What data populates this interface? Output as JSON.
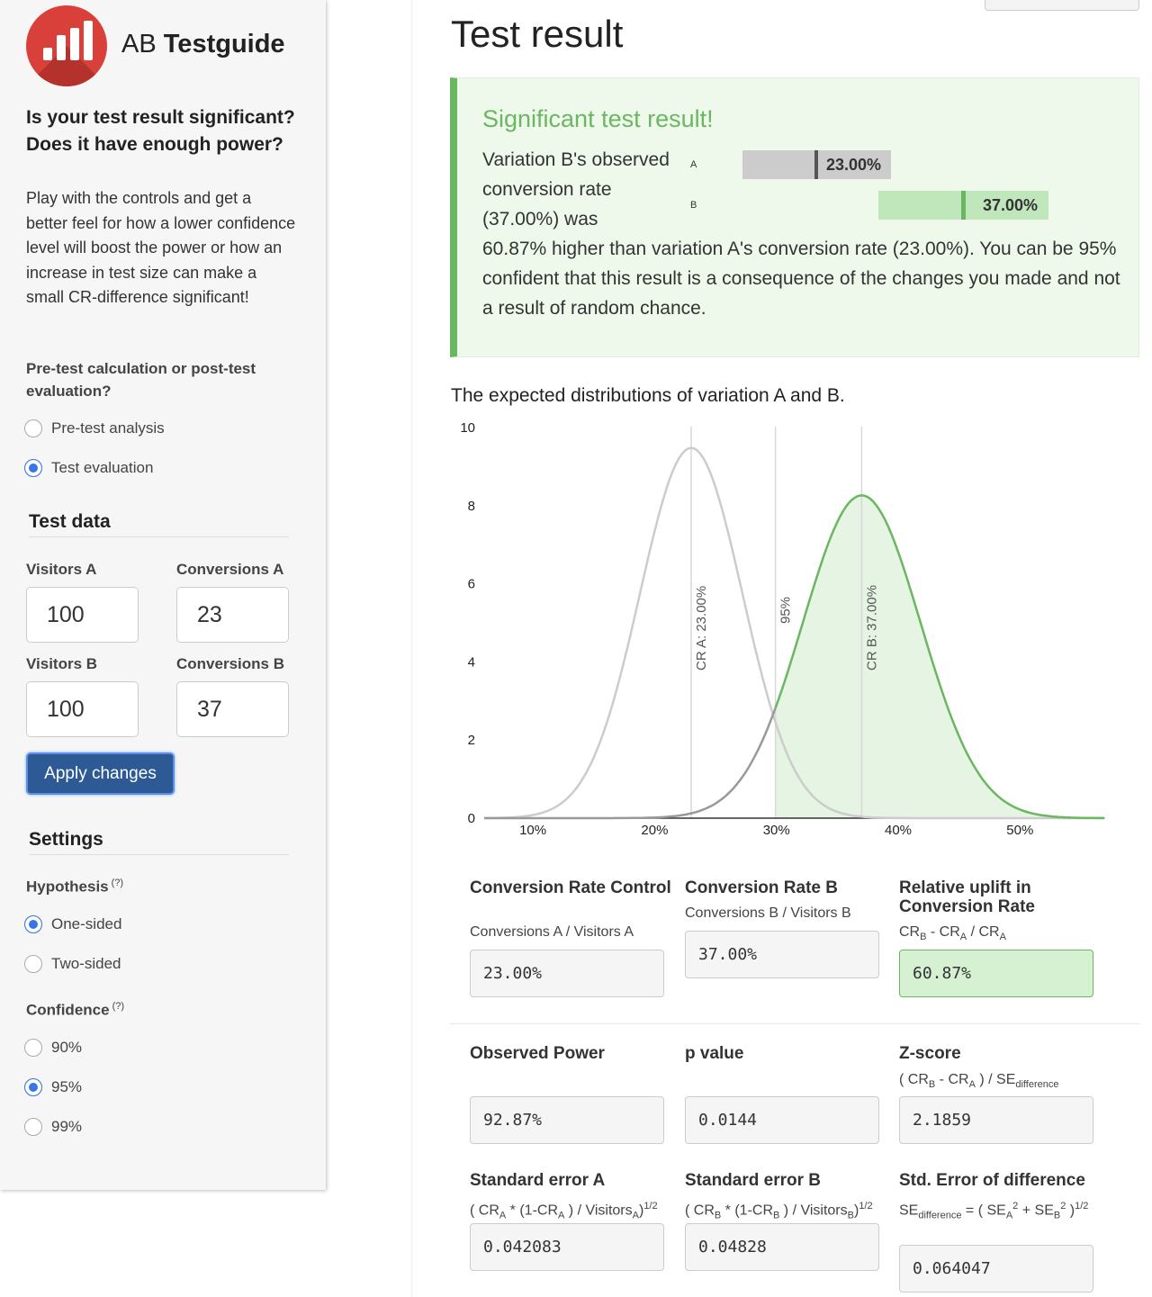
{
  "brand": {
    "prefix": "AB",
    "name": "Testguide"
  },
  "sidebar": {
    "question": "Is your test result significant? Does it have enough power?",
    "intro": "Play with the controls and get a better feel for how a lower confidence level will boost the power or how an increase in test size can make a small CR-difference significant!",
    "mode_label": "Pre-test calculation or post-test evaluation?",
    "mode_options": [
      {
        "label": "Pre-test analysis",
        "selected": false
      },
      {
        "label": "Test evaluation",
        "selected": true
      }
    ],
    "test_data_title": "Test data",
    "visitors_a_label": "Visitors A",
    "visitors_a": "100",
    "conversions_a_label": "Conversions A",
    "conversions_a": "23",
    "visitors_b_label": "Visitors B",
    "visitors_b": "100",
    "conversions_b_label": "Conversions B",
    "conversions_b": "37",
    "apply_label": "Apply changes",
    "settings_title": "Settings",
    "hypothesis_label": "Hypothesis",
    "help_mark": "(?)",
    "hypothesis_options": [
      {
        "label": "One-sided",
        "selected": true
      },
      {
        "label": "Two-sided",
        "selected": false
      }
    ],
    "confidence_label": "Confidence",
    "confidence_options": [
      {
        "label": "90%",
        "selected": false
      },
      {
        "label": "95%",
        "selected": true
      },
      {
        "label": "99%",
        "selected": false
      }
    ]
  },
  "main": {
    "title": "Test result",
    "alert": {
      "title": "Significant test result!",
      "lead": "Variation B's observed conversion rate (37.00%) was",
      "rest": "60.87% higher than variation A's conversion rate (23.00%). You can be 95% confident that this result is a consequence of the changes you made and not a result of random chance.",
      "bar_a_label": "A",
      "bar_a_value": "23.00%",
      "bar_b_label": "B",
      "bar_b_value": "37.00%"
    },
    "chart_title": "The expected distributions of variation A and B.",
    "stats": {
      "cr_control_title": "Conversion Rate Control",
      "cr_control_formula": "Conversions A / Visitors A",
      "cr_control_value": "23.00%",
      "cr_b_title": "Conversion Rate B",
      "cr_b_formula": "Conversions B / Visitors B",
      "cr_b_value": "37.00%",
      "uplift_title": "Relative uplift in Conversion Rate",
      "uplift_value": "60.87%",
      "power_title": "Observed Power",
      "power_value": "92.87%",
      "p_title": "p value",
      "p_value": "0.0144",
      "z_title": "Z-score",
      "z_value": "2.1859",
      "se_a_title": "Standard error A",
      "se_a_value": "0.042083",
      "se_b_title": "Standard error B",
      "se_b_value": "0.04828",
      "se_diff_title": "Std. Error of difference",
      "se_diff_value": "0.064047"
    }
  },
  "chart_data": {
    "type": "area",
    "title": "The expected distributions of variation A and B.",
    "xlabel": "",
    "ylabel": "",
    "x_ticks": [
      "10%",
      "20%",
      "30%",
      "40%",
      "50%"
    ],
    "y_ticks": [
      "0",
      "2",
      "4",
      "6",
      "8",
      "10"
    ],
    "xlim": [
      0.06,
      0.57
    ],
    "ylim": [
      0,
      10
    ],
    "series": [
      {
        "name": "A",
        "mean": 0.23,
        "sd": 0.042083,
        "color": "#cccccc"
      },
      {
        "name": "B",
        "mean": 0.37,
        "sd": 0.04828,
        "color": "#6bb761"
      }
    ],
    "reference_lines": [
      {
        "x": 0.23,
        "label": "CR A: 23.00%"
      },
      {
        "x": 0.2992,
        "label": "95%"
      },
      {
        "x": 0.37,
        "label": "CR B: 37.00%"
      }
    ],
    "colors": {
      "significant_fill": "#e6f4e3",
      "control_curve": "#cccccc",
      "variant_curve": "#6bb761"
    }
  }
}
